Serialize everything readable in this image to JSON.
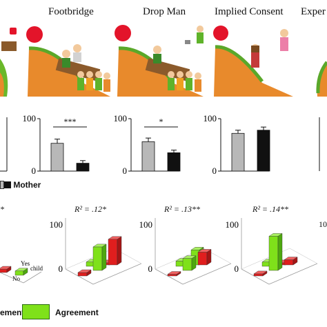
{
  "scenarios": [
    {
      "key": "partial-left",
      "title": ""
    },
    {
      "key": "footbridge",
      "title": "Footbridge"
    },
    {
      "key": "drop-man",
      "title": "Drop Man"
    },
    {
      "key": "implied-consent",
      "title": "Implied Consent"
    },
    {
      "key": "experimental",
      "title": "Exper"
    }
  ],
  "colors": {
    "grey_bar": "#b8b8b8",
    "black_bar": "#111111",
    "agreement_green": "#7fe11a",
    "disagreement_red": "#e01e1e",
    "hill_orange": "#e88a2c",
    "ball_red": "#e3142a"
  },
  "legend_top": {
    "mother_label": "Mother"
  },
  "legend_bottom": {
    "disagreement_label": "ement",
    "agreement_label": "Agreement"
  },
  "chart_data": [
    {
      "type": "bar",
      "panel": "Footbridge",
      "yticks": [
        "100",
        "0"
      ],
      "ylim": [
        0,
        100
      ],
      "series": [
        {
          "name": "",
          "color": "grey",
          "values": [
            53
          ]
        },
        {
          "name": "Mother",
          "color": "black",
          "values": [
            15
          ]
        }
      ],
      "error": [
        8,
        5
      ],
      "significance": "***"
    },
    {
      "type": "bar",
      "panel": "Drop Man",
      "yticks": [
        "100",
        "0"
      ],
      "ylim": [
        0,
        100
      ],
      "series": [
        {
          "name": "",
          "color": "grey",
          "values": [
            56
          ]
        },
        {
          "name": "Mother",
          "color": "black",
          "values": [
            35
          ]
        }
      ],
      "error": [
        7,
        5
      ],
      "significance": "*"
    },
    {
      "type": "bar",
      "panel": "Implied Consent",
      "yticks": [
        "100",
        "0"
      ],
      "ylim": [
        0,
        100
      ],
      "series": [
        {
          "name": "",
          "color": "grey",
          "values": [
            72
          ]
        },
        {
          "name": "Mother",
          "color": "black",
          "values": [
            78
          ]
        }
      ],
      "error": [
        6,
        6
      ],
      "significance": ""
    },
    {
      "type": "bar3d",
      "panel": "Footbridge",
      "r2": "R² = .12*",
      "zticks": [
        "100",
        "0"
      ],
      "axis_labels": {
        "yes_child": "Yes",
        "child_sub": "child",
        "no": "No"
      },
      "bars": [
        {
          "row": "front",
          "col": 0,
          "color": "red",
          "value": 8
        },
        {
          "row": "front",
          "col": 1,
          "color": "green",
          "value": 55
        },
        {
          "row": "front",
          "col": 2,
          "color": "red",
          "value": 60
        },
        {
          "row": "back",
          "col": 0,
          "color": "green",
          "value": 10
        },
        {
          "row": "back",
          "col": 1,
          "color": "red",
          "value": 5
        }
      ]
    },
    {
      "type": "bar3d",
      "panel": "Drop Man",
      "r2": "R² = .13**",
      "zticks": [
        "100",
        "0"
      ],
      "bars": [
        {
          "row": "front",
          "col": 0,
          "color": "red",
          "value": 4
        },
        {
          "row": "front",
          "col": 1,
          "color": "green",
          "value": 28
        },
        {
          "row": "front",
          "col": 2,
          "color": "red",
          "value": 30
        },
        {
          "row": "back",
          "col": 0,
          "color": "green",
          "value": 12
        },
        {
          "row": "back",
          "col": 1,
          "color": "green",
          "value": 35
        }
      ]
    },
    {
      "type": "bar3d",
      "panel": "Implied Consent",
      "r2": "R² = .14**",
      "zticks": [
        "100",
        "0"
      ],
      "bars": [
        {
          "row": "front",
          "col": 0,
          "color": "red",
          "value": 5
        },
        {
          "row": "front",
          "col": 1,
          "color": "green",
          "value": 80
        },
        {
          "row": "front",
          "col": 2,
          "color": "red",
          "value": 12
        },
        {
          "row": "back",
          "col": 0,
          "color": "green",
          "value": 10
        },
        {
          "row": "back",
          "col": 1,
          "color": "red",
          "value": 5
        }
      ]
    },
    {
      "type": "bar3d",
      "panel": "partial-left",
      "r2": "*",
      "bars": [
        {
          "row": "front",
          "col": 0,
          "color": "red",
          "value": 8
        },
        {
          "row": "front",
          "col": 1,
          "color": "green",
          "value": 10
        }
      ]
    }
  ],
  "partial_right": {
    "ytick": "10"
  }
}
